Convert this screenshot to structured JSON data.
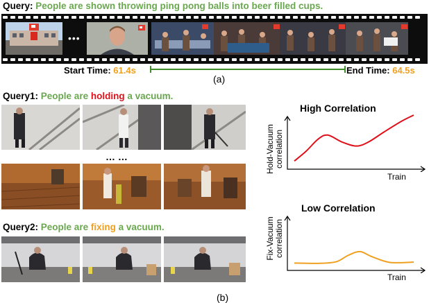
{
  "query_a": {
    "prefix": "Query:",
    "text": "People are shown throwing ping pong balls into beer filled cups."
  },
  "timeline": {
    "start_label": "Start Time:",
    "start_value": "61.4s",
    "end_label": "End Time:",
    "end_value": "64.5s",
    "ellipsis": "•••"
  },
  "caption_a": "(a)",
  "query1": {
    "prefix": "Query1:",
    "part1": "People are",
    "highlight": "holding",
    "part2": "a vacuum."
  },
  "row_ellipsis": "… …",
  "query2": {
    "prefix": "Query2:",
    "part1": "People are",
    "highlight": "fixing",
    "part2": "a vacuum."
  },
  "caption_b": "(b)",
  "colors": {
    "green": "#6aa84f",
    "red": "#e0101a",
    "orange": "#f0a020",
    "timeline_green": "#3e8e2a"
  },
  "chart_data": [
    {
      "type": "line",
      "title": "High Correlation",
      "xlabel": "Train",
      "ylabel": "Hold-Vacuum correlation",
      "ylabel_lines": [
        "Hold-Vacuum",
        "correlation"
      ],
      "series": [
        {
          "color": "#e0101a",
          "x": [
            0,
            0.1,
            0.2,
            0.28,
            0.4,
            0.52,
            0.62,
            0.75,
            0.9,
            1.0
          ],
          "y": [
            0.08,
            0.28,
            0.52,
            0.6,
            0.46,
            0.38,
            0.46,
            0.66,
            0.88,
            1.0
          ]
        }
      ]
    },
    {
      "type": "line",
      "title": "Low Correlation",
      "xlabel": "Train",
      "ylabel": "Fix-Vacuum correlation",
      "ylabel_lines": [
        "Fix-Vacuum",
        "correlation"
      ],
      "series": [
        {
          "color": "#f0a020",
          "x": [
            0,
            0.2,
            0.35,
            0.45,
            0.55,
            0.65,
            0.8,
            1.0
          ],
          "y": [
            0.1,
            0.09,
            0.14,
            0.34,
            0.46,
            0.3,
            0.12,
            0.13
          ]
        }
      ]
    }
  ]
}
